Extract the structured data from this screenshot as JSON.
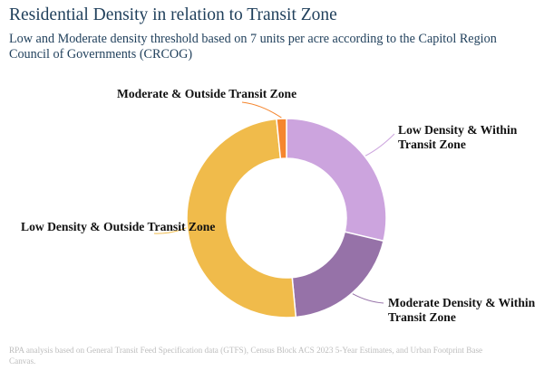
{
  "chart_data": {
    "type": "pie",
    "title": "Residential Density in relation to Transit Zone",
    "subtitle": "Low and Moderate density threshold based on 7 units per acre according to the Capitol Region Council of Governments (CRCOG)",
    "slices": [
      {
        "label": "Low Density & Within Transit Zone",
        "value": 28.7,
        "color": "#cca4de"
      },
      {
        "label": "Moderate Density & Within Transit Zone",
        "value": 19.8,
        "color": "#9672a8"
      },
      {
        "label": "Low Density & Outside Transit Zone",
        "value": 49.9,
        "color": "#f0bb4b"
      },
      {
        "label": "Moderate & Outside Transit Zone",
        "value": 1.6,
        "color": "#f5862f"
      }
    ],
    "donut": true,
    "footnote": "RPA analysis based on General Transit Feed Specification data (GTFS), Census Block ACS 2023 5-Year Estimates, and Urban Footprint Base Canvas."
  }
}
